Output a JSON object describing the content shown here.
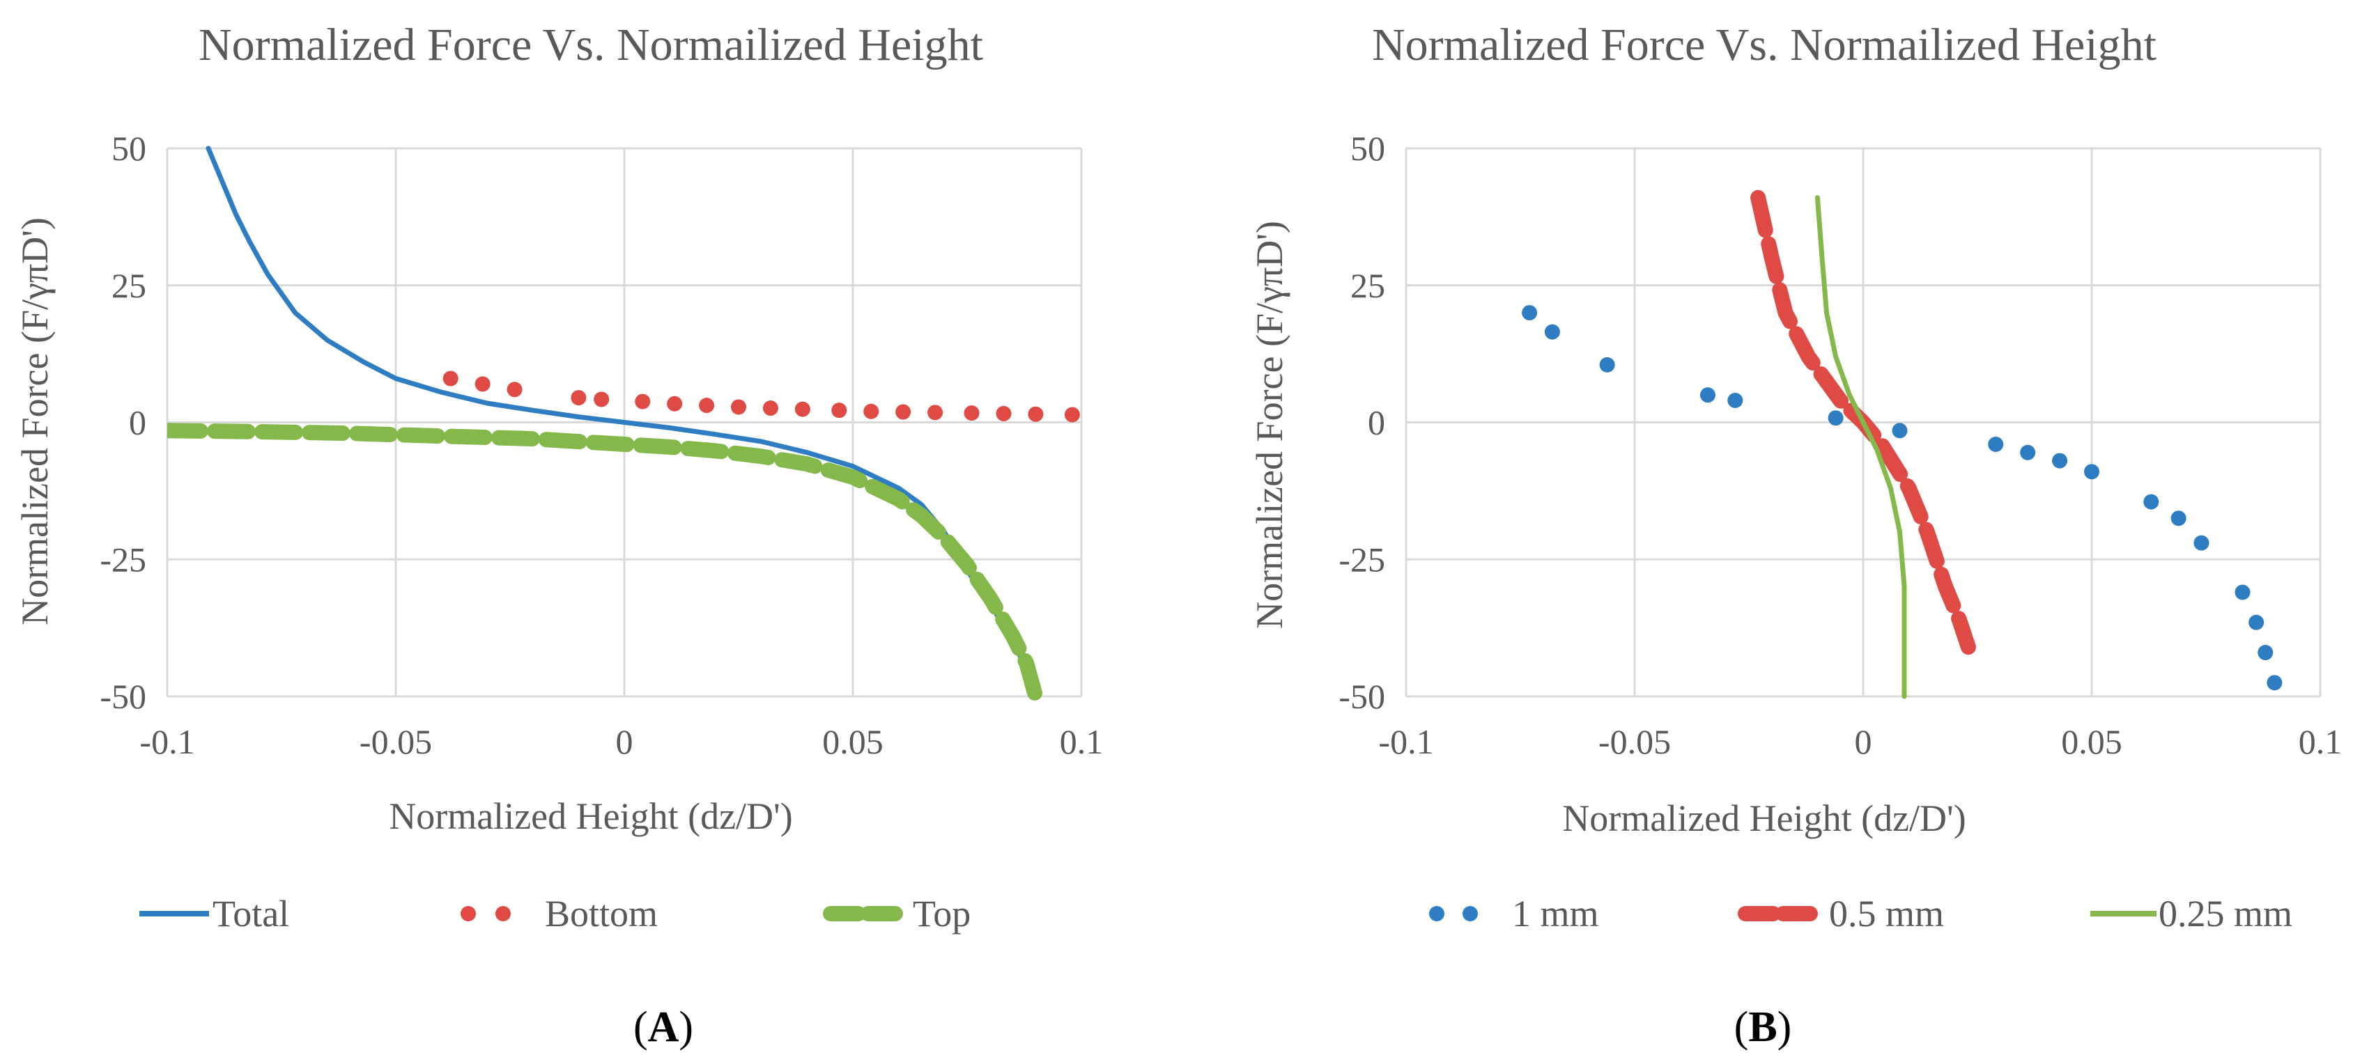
{
  "colors": {
    "blue": "#2e7dc2",
    "red": "#e04a45",
    "green": "#84b84a",
    "grid": "#d9d9d9",
    "text": "#595959"
  },
  "chart_data": [
    {
      "type": "line",
      "title": "Normalized Force Vs. Normailized Height",
      "xlabel": "Normalized Height (dz/D')",
      "ylabel": "Normalized Force (F/γπD')",
      "xlim": [
        -0.1,
        0.1
      ],
      "ylim": [
        -50,
        50
      ],
      "xticks": [
        "-0.1",
        "-0.05",
        "0",
        "0.05",
        "0.1"
      ],
      "yticks": [
        "50",
        "25",
        "0",
        "-25",
        "-50"
      ],
      "grid": true,
      "legend": "bottom",
      "panel_label": "A",
      "series": [
        {
          "name": "Total",
          "style": "solid",
          "color": "#2e7dc2",
          "x": [
            -0.091,
            -0.088,
            -0.085,
            -0.082,
            -0.078,
            -0.072,
            -0.065,
            -0.057,
            -0.05,
            -0.04,
            -0.03,
            -0.02,
            -0.01,
            0,
            0.01,
            0.02,
            0.03,
            0.04,
            0.05,
            0.06,
            0.065,
            0.07,
            0.075,
            0.08,
            0.085,
            0.088,
            0.09
          ],
          "y": [
            50,
            44,
            38,
            33,
            27,
            20,
            15,
            11,
            8,
            5.5,
            3.5,
            2.2,
            1,
            0,
            -1,
            -2.2,
            -3.5,
            -5.5,
            -8,
            -12,
            -15,
            -20,
            -27,
            -33,
            -40,
            -45,
            -50
          ]
        },
        {
          "name": "Bottom",
          "style": "dots",
          "color": "#e04a45",
          "x": [
            -0.038,
            -0.031,
            -0.024,
            -0.01,
            -0.005,
            0.004,
            0.011,
            0.018,
            0.025,
            0.032,
            0.039,
            0.047,
            0.054,
            0.061,
            0.068,
            0.076,
            0.083,
            0.09,
            0.098
          ],
          "y": [
            8,
            7,
            6,
            4.5,
            4.2,
            3.8,
            3.4,
            3.1,
            2.8,
            2.6,
            2.4,
            2.2,
            2.0,
            1.9,
            1.8,
            1.7,
            1.6,
            1.5,
            1.4
          ]
        },
        {
          "name": "Top",
          "style": "dashed",
          "color": "#84b84a",
          "x": [
            -0.1,
            -0.08,
            -0.06,
            -0.04,
            -0.02,
            0,
            0.01,
            0.02,
            0.03,
            0.04,
            0.05,
            0.06,
            0.065,
            0.07,
            0.075,
            0.08,
            0.085,
            0.088,
            0.09
          ],
          "y": [
            -1.5,
            -1.7,
            -2,
            -2.5,
            -3,
            -4,
            -4.5,
            -5.2,
            -6.2,
            -7.6,
            -10,
            -14,
            -17,
            -21,
            -26,
            -32,
            -39,
            -44,
            -50
          ]
        }
      ]
    },
    {
      "type": "scatter",
      "title": "Normalized Force Vs. Normailized Height",
      "xlabel": "Normalized Height (dz/D')",
      "ylabel": "Normalized Force (F/γπD')",
      "xlim": [
        -0.1,
        0.1
      ],
      "ylim": [
        -50,
        50
      ],
      "xticks": [
        "-0.1",
        "-0.05",
        "0",
        "0.05",
        "0.1"
      ],
      "yticks": [
        "50",
        "25",
        "0",
        "-25",
        "-50"
      ],
      "grid": true,
      "legend": "bottom",
      "panel_label": "B",
      "series": [
        {
          "name": "1 mm",
          "style": "dots",
          "color": "#2e7dc2",
          "x": [
            -0.073,
            -0.068,
            -0.056,
            -0.034,
            -0.028,
            -0.006,
            0.008,
            0.029,
            0.036,
            0.043,
            0.05,
            0.063,
            0.069,
            0.074,
            0.083,
            0.086,
            0.088,
            0.09
          ],
          "y": [
            20,
            16.5,
            10.5,
            5,
            4,
            0.8,
            -1.5,
            -4,
            -5.5,
            -7,
            -9,
            -14.5,
            -17.5,
            -22,
            -31,
            -36.5,
            -42,
            -47.5
          ]
        },
        {
          "name": "0.5 mm",
          "style": "dashed",
          "color": "#e04a45",
          "x": [
            -0.023,
            -0.02,
            -0.017,
            -0.012,
            -0.005,
            0,
            0.004,
            0.01,
            0.014,
            0.018,
            0.021,
            0.023
          ],
          "y": [
            41,
            30,
            20,
            12,
            4,
            0,
            -4,
            -12,
            -20,
            -30,
            -36,
            -41
          ]
        },
        {
          "name": "0.25 mm",
          "style": "solid",
          "color": "#84b84a",
          "x": [
            -0.01,
            -0.009,
            -0.008,
            -0.006,
            -0.003,
            0,
            0.003,
            0.006,
            0.008,
            0.009,
            0.009
          ],
          "y": [
            41,
            30,
            20,
            12,
            5,
            0,
            -5,
            -12,
            -20,
            -30,
            -50
          ]
        }
      ]
    }
  ]
}
